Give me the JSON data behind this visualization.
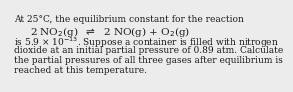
{
  "line1": "At 25°C, the equilibrium constant for the reaction",
  "line2": "2 NO$_2$(g)  $\\rightleftharpoons$  2 NO(g) + O$_2$(g)",
  "line3": "is 5.9 × 10$^{-13}$. Suppose a container is filled with nitrogen",
  "line4": "dioxide at an initial partial pressure of 0.89 atm. Calculate",
  "line5": "the partial pressures of all three gases after equilibrium is",
  "line6": "reached at this temperature.",
  "bg_color": "#ececec",
  "text_color": "#1a1a1a",
  "font_size": 6.5,
  "eq_font_size": 7.5
}
